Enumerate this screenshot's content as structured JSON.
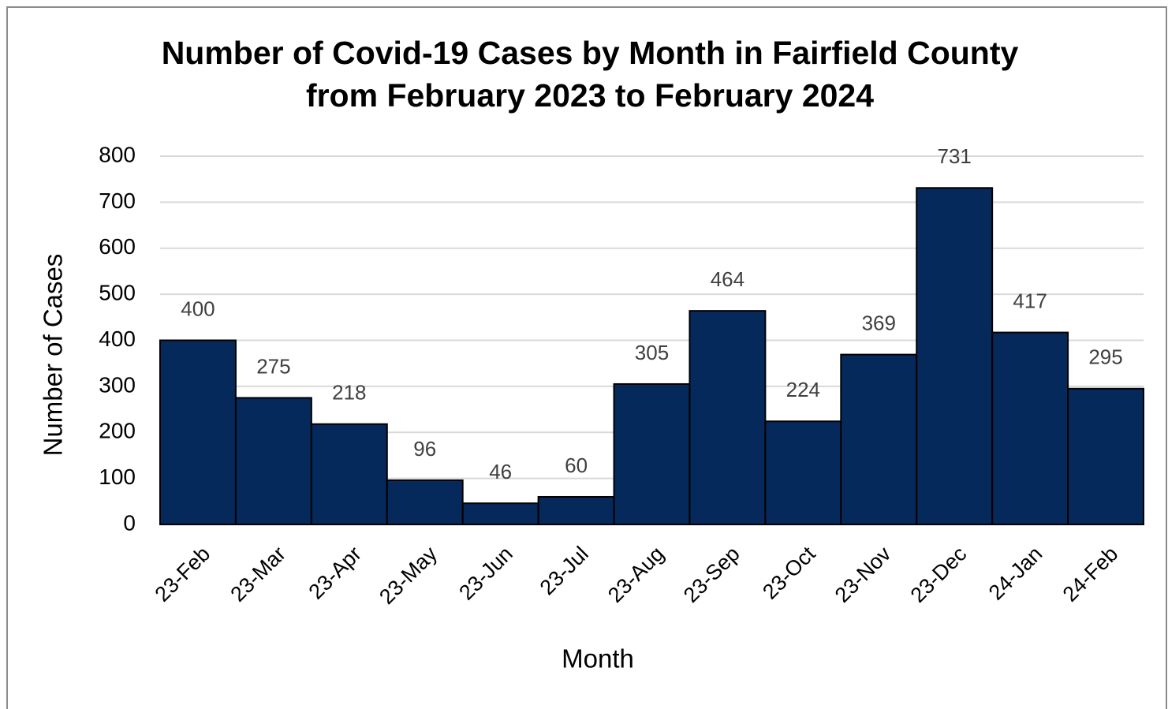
{
  "chart_data": {
    "type": "bar",
    "title": "Number of Covid-19 Cases by Month in Fairfield County from February 2023 to February 2024",
    "x_label": "Month",
    "y_label": "Number of Cases",
    "categories": [
      "23-Feb",
      "23-Mar",
      "23-Apr",
      "23-May",
      "23-Jun",
      "23-Jul",
      "23-Aug",
      "23-Sep",
      "23-Oct",
      "23-Nov",
      "23-Dec",
      "24-Jan",
      "24-Feb"
    ],
    "values": [
      400,
      275,
      218,
      96,
      46,
      60,
      305,
      464,
      224,
      369,
      731,
      417,
      295
    ],
    "color": "#06295b",
    "ylim": [
      0,
      800
    ],
    "yticks": [
      0,
      100,
      200,
      300,
      400,
      500,
      600,
      700,
      800
    ],
    "grid": true
  }
}
